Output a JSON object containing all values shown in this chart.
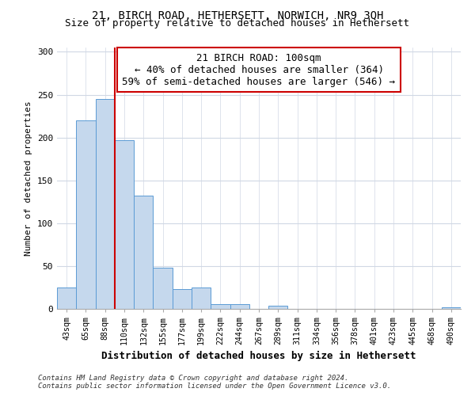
{
  "title": "21, BIRCH ROAD, HETHERSETT, NORWICH, NR9 3QH",
  "subtitle": "Size of property relative to detached houses in Hethersett",
  "xlabel": "Distribution of detached houses by size in Hethersett",
  "ylabel": "Number of detached properties",
  "bar_labels": [
    "43sqm",
    "65sqm",
    "88sqm",
    "110sqm",
    "132sqm",
    "155sqm",
    "177sqm",
    "199sqm",
    "222sqm",
    "244sqm",
    "267sqm",
    "289sqm",
    "311sqm",
    "334sqm",
    "356sqm",
    "378sqm",
    "401sqm",
    "423sqm",
    "445sqm",
    "468sqm",
    "490sqm"
  ],
  "bar_values": [
    25,
    220,
    245,
    197,
    132,
    48,
    23,
    25,
    6,
    6,
    0,
    4,
    0,
    0,
    0,
    0,
    0,
    0,
    0,
    0,
    2
  ],
  "bar_color": "#c5d8ed",
  "bar_edge_color": "#5b9bd5",
  "vline_color": "#cc0000",
  "annotation_title": "21 BIRCH ROAD: 100sqm",
  "annotation_line1": "← 40% of detached houses are smaller (364)",
  "annotation_line2": "59% of semi-detached houses are larger (546) →",
  "annotation_box_color": "#ffffff",
  "annotation_box_edge": "#cc0000",
  "ylim": [
    0,
    305
  ],
  "yticks": [
    0,
    50,
    100,
    150,
    200,
    250,
    300
  ],
  "footnote1": "Contains HM Land Registry data © Crown copyright and database right 2024.",
  "footnote2": "Contains public sector information licensed under the Open Government Licence v3.0.",
  "background_color": "#ffffff",
  "plot_bg_color": "#ffffff",
  "grid_color": "#d0d8e4",
  "title_fontsize": 10,
  "subtitle_fontsize": 9,
  "annotation_fontsize": 9
}
